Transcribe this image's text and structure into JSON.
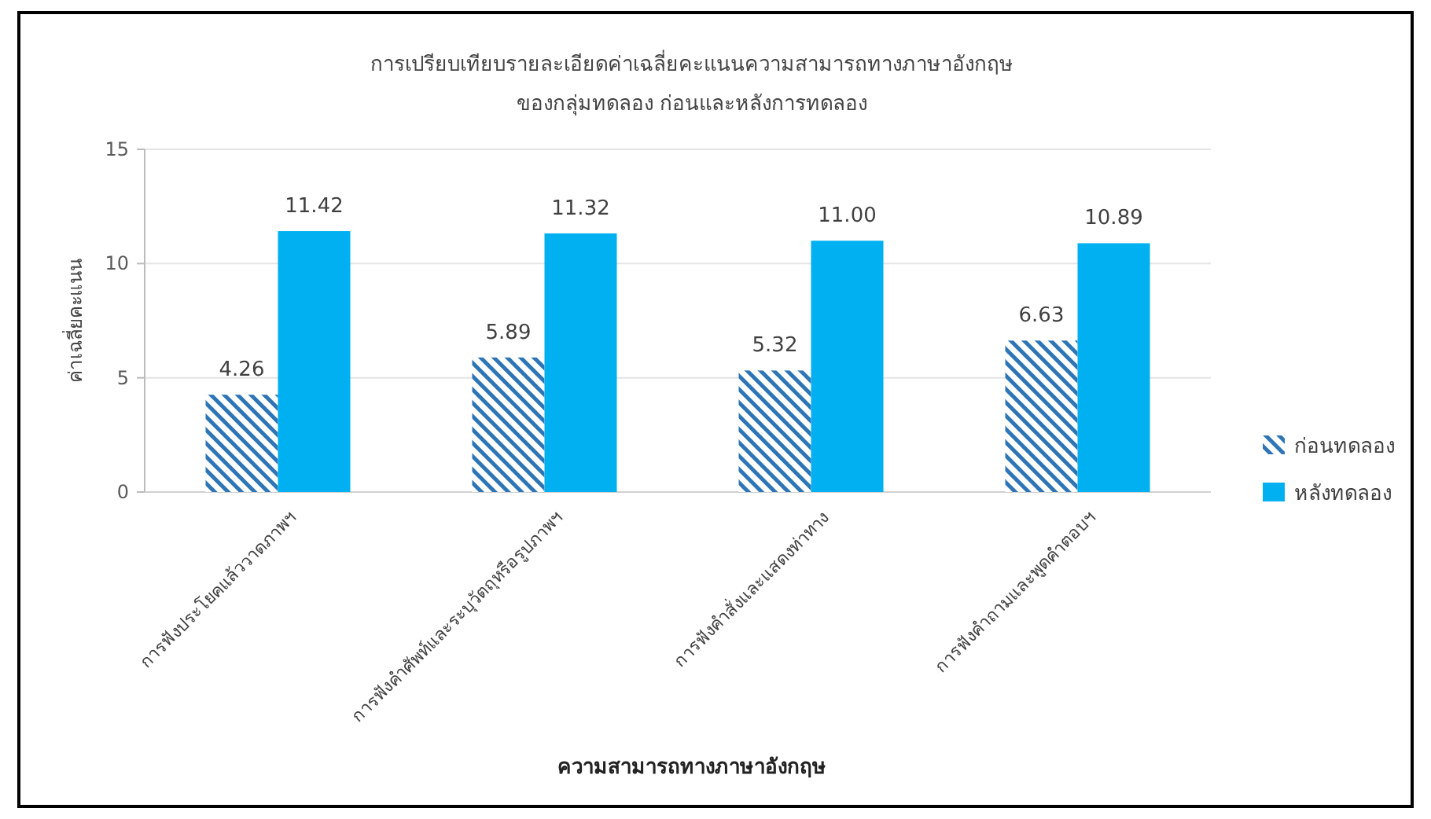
{
  "chart_data": {
    "type": "bar",
    "title": "การเปรียบเทียบรายละเอียดค่าเฉลี่ยคะแนนความสามารถทางภาษาอังกฤษ",
    "subtitle": "ของกลุ่มทดลอง ก่อนและหลังการทดลอง",
    "xlabel": "ความสามารถทางภาษาอังกฤษ",
    "ylabel": "ค่าเฉลี่ยคะแนน",
    "categories": [
      "การฟังประโยคแล้ววาดภาพฯ",
      "การฟังคำศัพท์และระบุวัตถุหรือรูปภาพฯ",
      "การฟังคำสั่งและแสดงท่าทาง",
      "การฟังคำถามและพูดคำตอบฯ"
    ],
    "series": [
      {
        "name": "ก่อนทดลอง",
        "color": "#2e75b6",
        "values": [
          4.26,
          5.89,
          5.32,
          6.63
        ],
        "value_labels": [
          "4.26",
          "5.89",
          "5.32",
          "6.63"
        ]
      },
      {
        "name": "หลังทดลอง",
        "color": "#00b0f0",
        "values": [
          11.42,
          11.32,
          11.0,
          10.89
        ],
        "value_labels": [
          "11.42",
          "11.32",
          "11.00",
          "10.89"
        ]
      }
    ],
    "ylim": [
      0,
      15
    ],
    "yticks": [
      0,
      5,
      10,
      15
    ],
    "grid": "y",
    "legend": "right"
  }
}
